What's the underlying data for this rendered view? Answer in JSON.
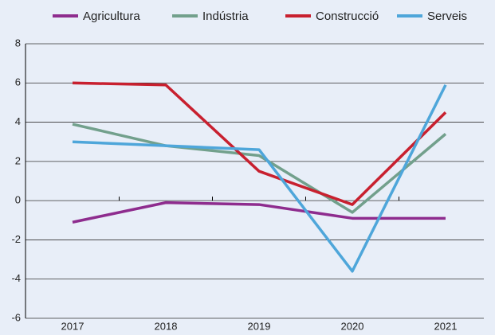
{
  "chart_data": {
    "type": "line",
    "categories": [
      "2017",
      "2018",
      "2019",
      "2020",
      "2021"
    ],
    "series": [
      {
        "name": "Agricultura",
        "color": "#8e2c8e",
        "values": [
          -1.1,
          -0.1,
          -0.2,
          -0.9,
          -0.9
        ]
      },
      {
        "name": "Indústria",
        "color": "#72a08c",
        "values": [
          3.9,
          2.8,
          2.3,
          -0.6,
          3.4
        ]
      },
      {
        "name": "Construcció",
        "color": "#c8202f",
        "values": [
          6.0,
          5.9,
          1.5,
          -0.2,
          4.5
        ]
      },
      {
        "name": "Serveis",
        "color": "#4ea6da",
        "values": [
          3.0,
          2.8,
          2.6,
          -3.6,
          5.9
        ]
      }
    ],
    "ylim": [
      -6,
      8
    ],
    "yticks": [
      -6,
      -4,
      -2,
      0,
      2,
      4,
      6,
      8
    ],
    "grid": true,
    "legend": "top"
  }
}
